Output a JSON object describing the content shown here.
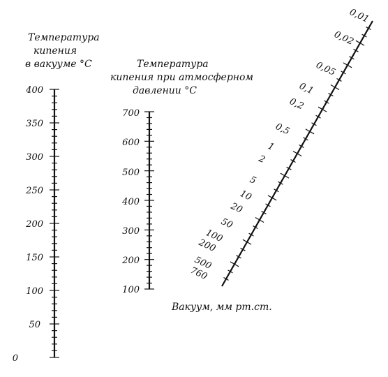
{
  "vacuum_temp_scale": {
    "title_lines": [
      "Температура",
      "кипения",
      "в вакууме °С"
    ],
    "ticks": [
      "400",
      "350",
      "300",
      "250",
      "200",
      "150",
      "100",
      "50",
      "0"
    ]
  },
  "atm_temp_scale": {
    "title_lines": [
      "Температура",
      "кипения при атмосферном",
      "давлении °С"
    ],
    "ticks": [
      "700",
      "600",
      "500",
      "400",
      "300",
      "200",
      "100"
    ]
  },
  "pressure_scale": {
    "title": "Вакуум, мм рт.ст.",
    "ticks": [
      "0,01",
      "0,02",
      "0,05",
      "0,1",
      "0,2",
      "0,5",
      "1",
      "2",
      "5",
      "10",
      "20",
      "50",
      "100",
      "200",
      "500",
      "760"
    ]
  }
}
